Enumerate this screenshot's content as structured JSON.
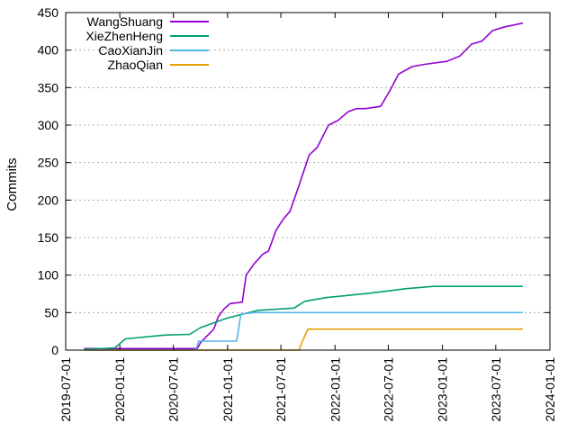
{
  "chart_data": {
    "type": "line",
    "title": "",
    "xlabel": "",
    "ylabel": "Commits",
    "x_axis_type": "date",
    "xlim": [
      "2019-07-01",
      "2024-01-01"
    ],
    "ylim": [
      0,
      450
    ],
    "y_ticks": [
      0,
      50,
      100,
      150,
      200,
      250,
      300,
      350,
      400,
      450
    ],
    "x_tick_labels": [
      "2019-07-01",
      "2020-01-01",
      "2020-07-01",
      "2021-01-01",
      "2021-07-01",
      "2022-01-01",
      "2022-07-01",
      "2023-01-01",
      "2023-07-01",
      "2024-01-01"
    ],
    "grid": "horizontal dotted",
    "legend_position": "top-left",
    "series": [
      {
        "name": "WangShuang",
        "color": "#9400d3",
        "points": [
          [
            "2019-09-01",
            2
          ],
          [
            "2020-09-20",
            2
          ],
          [
            "2020-10-01",
            10
          ],
          [
            "2020-11-15",
            28
          ],
          [
            "2020-12-01",
            45
          ],
          [
            "2020-12-20",
            55
          ],
          [
            "2021-01-10",
            62
          ],
          [
            "2021-02-20",
            64
          ],
          [
            "2021-03-05",
            100
          ],
          [
            "2021-04-01",
            115
          ],
          [
            "2021-05-01",
            128
          ],
          [
            "2021-05-20",
            132
          ],
          [
            "2021-06-15",
            160
          ],
          [
            "2021-07-10",
            175
          ],
          [
            "2021-08-01",
            185
          ],
          [
            "2021-09-01",
            220
          ],
          [
            "2021-10-05",
            260
          ],
          [
            "2021-11-01",
            270
          ],
          [
            "2021-12-10",
            300
          ],
          [
            "2022-01-10",
            306
          ],
          [
            "2022-02-15",
            318
          ],
          [
            "2022-03-15",
            322
          ],
          [
            "2022-04-15",
            322
          ],
          [
            "2022-06-05",
            325
          ],
          [
            "2022-07-05",
            345
          ],
          [
            "2022-08-05",
            368
          ],
          [
            "2022-09-20",
            378
          ],
          [
            "2022-11-01",
            381
          ],
          [
            "2023-01-15",
            385
          ],
          [
            "2023-03-01",
            392
          ],
          [
            "2023-04-10",
            408
          ],
          [
            "2023-05-15",
            412
          ],
          [
            "2023-06-20",
            426
          ],
          [
            "2023-08-01",
            431
          ],
          [
            "2023-10-01",
            436
          ]
        ]
      },
      {
        "name": "XieZhenHeng",
        "color": "#009e73",
        "points": [
          [
            "2019-09-01",
            1
          ],
          [
            "2019-12-15",
            3
          ],
          [
            "2020-01-20",
            15
          ],
          [
            "2020-06-01",
            20
          ],
          [
            "2020-08-25",
            21
          ],
          [
            "2020-10-01",
            30
          ],
          [
            "2021-01-01",
            43
          ],
          [
            "2021-04-15",
            53
          ],
          [
            "2021-08-15",
            56
          ],
          [
            "2021-09-20",
            65
          ],
          [
            "2021-12-01",
            70
          ],
          [
            "2022-02-15",
            73
          ],
          [
            "2022-05-01",
            76
          ],
          [
            "2022-09-01",
            82
          ],
          [
            "2022-12-01",
            85
          ],
          [
            "2023-10-01",
            85
          ]
        ]
      },
      {
        "name": "CaoXianJin",
        "color": "#56b4e9",
        "points": [
          [
            "2019-09-01",
            0
          ],
          [
            "2020-09-15",
            0
          ],
          [
            "2020-09-25",
            12
          ],
          [
            "2021-02-01",
            12
          ],
          [
            "2021-02-15",
            48
          ],
          [
            "2021-04-01",
            50
          ],
          [
            "2023-10-01",
            50
          ]
        ]
      },
      {
        "name": "ZhaoQian",
        "color": "#e69f00",
        "points": [
          [
            "2019-09-01",
            0
          ],
          [
            "2021-09-01",
            0
          ],
          [
            "2021-09-10",
            10
          ],
          [
            "2021-10-01",
            28
          ],
          [
            "2023-10-01",
            28
          ]
        ]
      }
    ]
  }
}
